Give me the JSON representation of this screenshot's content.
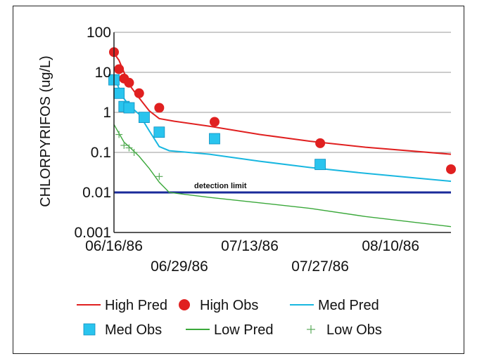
{
  "chart_data": {
    "type": "line",
    "title": "",
    "xlabel": "",
    "ylabel": "CHLORPYRIFOS (ug/L)",
    "yscale": "log",
    "ylim": [
      0.001,
      100
    ],
    "xlim": [
      "06/16/86",
      "08/22/86"
    ],
    "yticks": [
      "100",
      "10",
      "1",
      "0.1",
      "0.01",
      "0.001"
    ],
    "xticks_upper": [
      "06/16/86",
      "07/13/86",
      "08/10/86"
    ],
    "xticks_lower": [
      "06/29/86",
      "07/27/86"
    ],
    "grid": "horizontal",
    "legend_position": "bottom",
    "reference_lines": [
      {
        "label": "detection limit",
        "y": 0.01,
        "color": "#1a2a9a"
      }
    ],
    "series": [
      {
        "name": "High Pred",
        "style": "line",
        "color": "#e02020",
        "points": [
          [
            "06/16/86",
            30
          ],
          [
            "06/17/86",
            20
          ],
          [
            "06/18/86",
            10
          ],
          [
            "06/19/86",
            5
          ],
          [
            "06/21/86",
            2.3
          ],
          [
            "06/23/86",
            1.1
          ],
          [
            "06/25/86",
            0.7
          ],
          [
            "06/28/86",
            0.6
          ],
          [
            "07/05/86",
            0.45
          ],
          [
            "07/15/86",
            0.28
          ],
          [
            "07/25/86",
            0.19
          ],
          [
            "08/05/86",
            0.135
          ],
          [
            "08/22/86",
            0.09
          ]
        ]
      },
      {
        "name": "High Obs",
        "style": "circle",
        "color": "#e02020",
        "points": [
          [
            "06/16/86",
            32
          ],
          [
            "06/17/86",
            12
          ],
          [
            "06/18/86",
            7
          ],
          [
            "06/19/86",
            5.5
          ],
          [
            "06/21/86",
            3
          ],
          [
            "06/25/86",
            1.3
          ],
          [
            "07/06/86",
            0.58
          ],
          [
            "07/27/86",
            0.17
          ],
          [
            "08/22/86",
            0.038
          ]
        ]
      },
      {
        "name": "Med Pred",
        "style": "line",
        "color": "#19b7e0",
        "points": [
          [
            "06/16/86",
            8
          ],
          [
            "06/17/86",
            4
          ],
          [
            "06/18/86",
            2.2
          ],
          [
            "06/19/86",
            1.5
          ],
          [
            "06/21/86",
            0.9
          ],
          [
            "06/23/86",
            0.35
          ],
          [
            "06/25/86",
            0.14
          ],
          [
            "06/27/86",
            0.11
          ],
          [
            "07/05/86",
            0.09
          ],
          [
            "07/15/86",
            0.06
          ],
          [
            "07/25/86",
            0.042
          ],
          [
            "08/05/86",
            0.03
          ],
          [
            "08/22/86",
            0.019
          ]
        ]
      },
      {
        "name": "Med Obs",
        "style": "square",
        "color": "#29c4ee",
        "points": [
          [
            "06/16/86",
            6.5
          ],
          [
            "06/17/86",
            3
          ],
          [
            "06/18/86",
            1.4
          ],
          [
            "06/19/86",
            1.3
          ],
          [
            "06/22/86",
            0.75
          ],
          [
            "06/25/86",
            0.32
          ],
          [
            "07/06/86",
            0.22
          ],
          [
            "07/27/86",
            0.05
          ]
        ]
      },
      {
        "name": "Low Pred",
        "style": "line",
        "color": "#3aa83a",
        "points": [
          [
            "06/16/86",
            0.5
          ],
          [
            "06/17/86",
            0.3
          ],
          [
            "06/18/86",
            0.18
          ],
          [
            "06/19/86",
            0.14
          ],
          [
            "06/21/86",
            0.08
          ],
          [
            "06/23/86",
            0.04
          ],
          [
            "06/25/86",
            0.018
          ],
          [
            "06/27/86",
            0.01
          ],
          [
            "07/05/86",
            0.0075
          ],
          [
            "07/15/86",
            0.0055
          ],
          [
            "07/25/86",
            0.004
          ],
          [
            "08/05/86",
            0.0025
          ],
          [
            "08/22/86",
            0.0014
          ]
        ]
      },
      {
        "name": "Low Obs",
        "style": "plus",
        "color": "#5aaa5a",
        "points": [
          [
            "06/17/86",
            0.28
          ],
          [
            "06/18/86",
            0.15
          ],
          [
            "06/19/86",
            0.13
          ],
          [
            "06/20/86",
            0.1
          ],
          [
            "06/25/86",
            0.025
          ]
        ]
      }
    ]
  }
}
